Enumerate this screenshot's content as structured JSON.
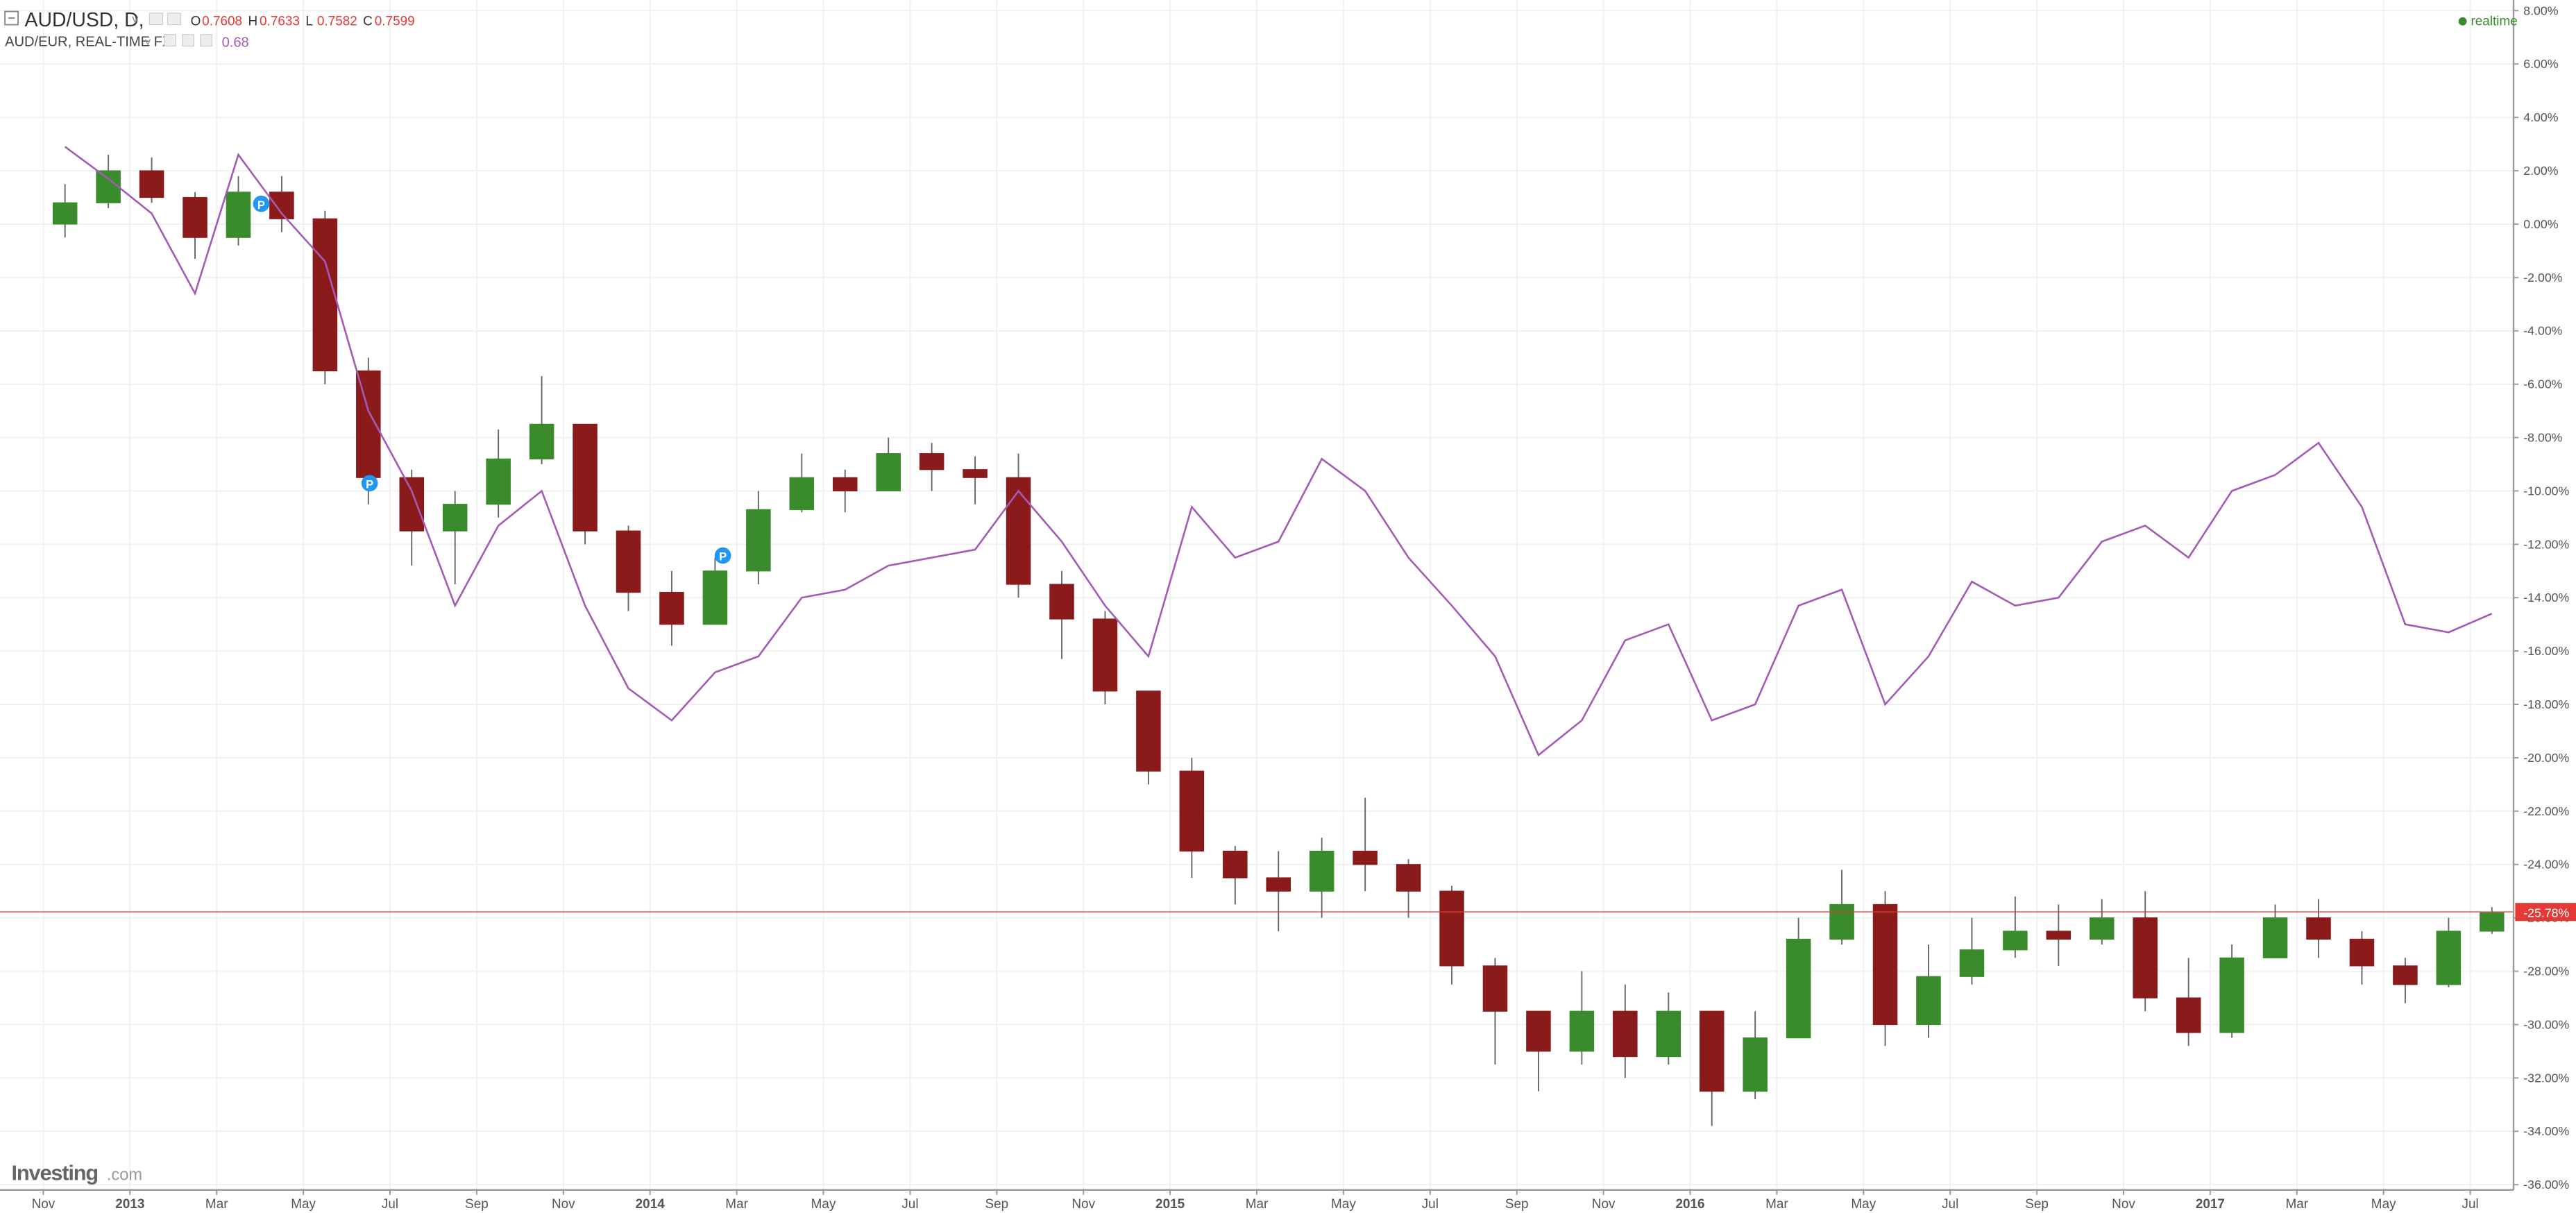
{
  "header": {
    "series_name": "AUD/USD, D,",
    "ohlc": [
      {
        "label": "O",
        "value": "0.7608"
      },
      {
        "label": "H",
        "value": "0.7633"
      },
      {
        "label": "L",
        "value": "0.7582"
      },
      {
        "label": "C",
        "value": "0.7599"
      }
    ],
    "compare_name": "AUD/EUR, REAL-TIME FX",
    "compare_value": "0.68",
    "status": "realtime",
    "brand": "Investing",
    "brand_suffix": ".com",
    "markers": [
      "P",
      "P",
      "P"
    ]
  },
  "chart_data": {
    "type": "candlestick",
    "x": [
      "2012-11",
      "2012-12",
      "2013-01",
      "2013-02",
      "2013-03",
      "2013-04",
      "2013-05",
      "2013-06",
      "2013-07",
      "2013-08",
      "2013-09",
      "2013-10",
      "2013-11",
      "2013-12",
      "2014-01",
      "2014-02",
      "2014-03",
      "2014-04",
      "2014-05",
      "2014-06",
      "2014-07",
      "2014-08",
      "2014-09",
      "2014-10",
      "2014-11",
      "2014-12",
      "2015-01",
      "2015-02",
      "2015-03",
      "2015-04",
      "2015-05",
      "2015-06",
      "2015-07",
      "2015-08",
      "2015-09",
      "2015-10",
      "2015-11",
      "2015-12",
      "2016-01",
      "2016-02",
      "2016-03",
      "2016-04",
      "2016-05",
      "2016-06",
      "2016-07",
      "2016-08",
      "2016-09",
      "2016-10",
      "2016-11",
      "2016-12",
      "2017-01",
      "2017-02",
      "2017-03",
      "2017-04",
      "2017-05",
      "2017-06",
      "2017-07"
    ],
    "series": [
      {
        "name": "AUD/USD",
        "type": "candlestick",
        "up_color": "#3a8b2c",
        "down_color": "#8b1a1a",
        "open": [
          0,
          0.8,
          2.0,
          1.0,
          -0.5,
          1.2,
          0.2,
          -5.5,
          -9.5,
          -11.5,
          -10.5,
          -8.8,
          -7.5,
          -11.5,
          -13.8,
          -15,
          -13,
          -10.7,
          -9.5,
          -10,
          -8.6,
          -9.2,
          -9.5,
          -13.5,
          -14.8,
          -17.5,
          -20.5,
          -23.5,
          -24.5,
          -25,
          -23.5,
          -24,
          -25,
          -27.8,
          -29.5,
          -31,
          -29.5,
          -31.2,
          -29.5,
          -32.5,
          -30.5,
          -26.8,
          -25.5,
          -30,
          -28.2,
          -27.2,
          -26.5,
          -26.8,
          -26,
          -29,
          -30.3,
          -27.5,
          -26,
          -26.8,
          -27.8,
          -28.5,
          -26.5
        ],
        "high": [
          1.5,
          2.6,
          2.5,
          1.2,
          1.8,
          1.8,
          0.5,
          -5,
          -9.2,
          -10,
          -7.7,
          -5.7,
          -7.5,
          -11.3,
          -13,
          -12.5,
          -10,
          -8.6,
          -9.2,
          -8.0,
          -8.2,
          -8.7,
          -8.6,
          -13,
          -14.5,
          -17.5,
          -20,
          -23.3,
          -23.5,
          -23,
          -21.5,
          -23.8,
          -24.8,
          -27.5,
          -29.5,
          -28,
          -28.5,
          -28.8,
          -29.5,
          -29.5,
          -26,
          -24.2,
          -25,
          -27,
          -26,
          -25.2,
          -25.5,
          -25.3,
          -25,
          -27.5,
          -27.0,
          -25.5,
          -25.3,
          -26.5,
          -27.5,
          -26,
          -25.6
        ],
        "low": [
          -0.5,
          0.6,
          0.8,
          -1.3,
          -0.8,
          -0.3,
          -6,
          -10.5,
          -12.8,
          -13.5,
          -11,
          -9,
          -12,
          -14.5,
          -15.8,
          -15,
          -13.5,
          -10.8,
          -10.8,
          -10,
          -10,
          -10.5,
          -14,
          -16.3,
          -18,
          -21,
          -24.5,
          -25.5,
          -26.5,
          -26,
          -25,
          -26,
          -28.5,
          -31.5,
          -32.5,
          -31.5,
          -32,
          -31.5,
          -33.8,
          -32.8,
          -30.5,
          -27,
          -30.8,
          -30.5,
          -28.5,
          -27.5,
          -27.8,
          -27,
          -29.5,
          -30.8,
          -30.5,
          -27.5,
          -27.5,
          -28.5,
          -29.2,
          -28.6,
          -26.6
        ],
        "close": [
          0.8,
          2.0,
          1.0,
          -0.5,
          1.2,
          0.2,
          -5.5,
          -9.5,
          -11.5,
          -10.5,
          -8.8,
          -7.5,
          -11.5,
          -13.8,
          -15,
          -13,
          -10.7,
          -9.5,
          -10,
          -8.6,
          -9.2,
          -9.5,
          -13.5,
          -14.8,
          -17.5,
          -20.5,
          -23.5,
          -24.5,
          -25,
          -23.5,
          -24,
          -25,
          -27.8,
          -29.5,
          -31,
          -29.5,
          -31.2,
          -29.5,
          -32.5,
          -30.5,
          -26.8,
          -25.5,
          -30,
          -28.2,
          -27.2,
          -26.5,
          -26.8,
          -26,
          -29,
          -30.3,
          -27.5,
          -26,
          -26.8,
          -27.8,
          -28.5,
          -26.5,
          -25.8
        ]
      },
      {
        "name": "AUD/EUR",
        "type": "line",
        "color": "#a35bb5",
        "values": [
          2.9,
          1.7,
          0.4,
          -2.6,
          2.6,
          0.4,
          -1.4,
          -7,
          -10,
          -14.3,
          -11.3,
          -10,
          -14.3,
          -17.4,
          -18.6,
          -16.8,
          -16.2,
          -14,
          -13.7,
          -12.8,
          -12.5,
          -12.2,
          -10,
          -11.9,
          -14.3,
          -16.2,
          -10.6,
          -12.5,
          -11.9,
          -8.8,
          -10,
          -12.5,
          -14.3,
          -16.2,
          -19.9,
          -18.6,
          -15.6,
          -15,
          -18.6,
          -18,
          -14.3,
          -13.7,
          -18,
          -16.2,
          -13.4,
          -14.3,
          -14,
          -11.9,
          -11.3,
          -12.5,
          -10,
          -9.4,
          -8.2,
          -10.6,
          -15,
          -15.3,
          -14.6
        ]
      }
    ],
    "xlim": [
      "2012-10",
      "2017-08"
    ],
    "xticks": [
      {
        "value": "2012-11",
        "label": "Nov"
      },
      {
        "value": "2013-01",
        "label": "2013"
      },
      {
        "value": "2013-03",
        "label": "Mar"
      },
      {
        "value": "2013-05",
        "label": "May"
      },
      {
        "value": "2013-07",
        "label": "Jul"
      },
      {
        "value": "2013-09",
        "label": "Sep"
      },
      {
        "value": "2013-11",
        "label": "Nov"
      },
      {
        "value": "2014-01",
        "label": "2014"
      },
      {
        "value": "2014-03",
        "label": "Mar"
      },
      {
        "value": "2014-05",
        "label": "May"
      },
      {
        "value": "2014-07",
        "label": "Jul"
      },
      {
        "value": "2014-09",
        "label": "Sep"
      },
      {
        "value": "2014-11",
        "label": "Nov"
      },
      {
        "value": "2015-01",
        "label": "2015"
      },
      {
        "value": "2015-03",
        "label": "Mar"
      },
      {
        "value": "2015-05",
        "label": "May"
      },
      {
        "value": "2015-07",
        "label": "Jul"
      },
      {
        "value": "2015-09",
        "label": "Sep"
      },
      {
        "value": "2015-11",
        "label": "Nov"
      },
      {
        "value": "2016-01",
        "label": "2016"
      },
      {
        "value": "2016-03",
        "label": "Mar"
      },
      {
        "value": "2016-05",
        "label": "May"
      },
      {
        "value": "2016-07",
        "label": "Jul"
      },
      {
        "value": "2016-09",
        "label": "Sep"
      },
      {
        "value": "2016-11",
        "label": "Nov"
      },
      {
        "value": "2017-01",
        "label": "2017"
      },
      {
        "value": "2017-03",
        "label": "Mar"
      },
      {
        "value": "2017-05",
        "label": "May"
      },
      {
        "value": "2017-07",
        "label": "Jul"
      }
    ],
    "ylim": [
      -36.2,
      8.4
    ],
    "yticks": [
      {
        "value": 8,
        "label": "8.00%"
      },
      {
        "value": 6,
        "label": "6.00%"
      },
      {
        "value": 4,
        "label": "4.00%"
      },
      {
        "value": 2,
        "label": "2.00%"
      },
      {
        "value": 0,
        "label": "0.00%"
      },
      {
        "value": -2,
        "label": "-2.00%"
      },
      {
        "value": -4,
        "label": "-4.00%"
      },
      {
        "value": -6,
        "label": "-6.00%"
      },
      {
        "value": -8,
        "label": "-8.00%"
      },
      {
        "value": -10,
        "label": "-10.00%"
      },
      {
        "value": -12,
        "label": "-12.00%"
      },
      {
        "value": -14,
        "label": "-14.00%"
      },
      {
        "value": -16,
        "label": "-16.00%"
      },
      {
        "value": -18,
        "label": "-18.00%"
      },
      {
        "value": -20,
        "label": "-20.00%"
      },
      {
        "value": -22,
        "label": "-22.00%"
      },
      {
        "value": -24,
        "label": "-24.00%"
      },
      {
        "value": -26,
        "label": "-26.00%"
      },
      {
        "value": -28,
        "label": "-28.00%"
      },
      {
        "value": -30,
        "label": "-30.00%"
      },
      {
        "value": -32,
        "label": "-32.00%"
      },
      {
        "value": -34,
        "label": "-34.00%"
      },
      {
        "value": -36,
        "label": "-36.00%"
      }
    ],
    "grid": true,
    "price_line": {
      "value": -25.78,
      "label": "-25.78%",
      "color": "#e53935"
    }
  }
}
